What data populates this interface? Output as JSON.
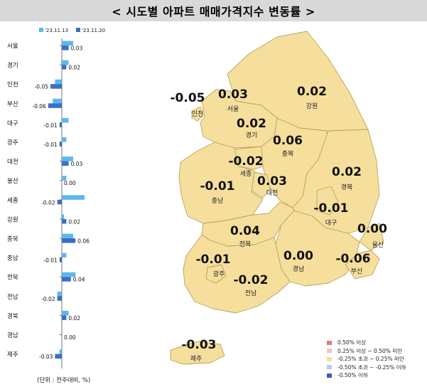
{
  "title": "< 시도별 아파트 매매가격지수 변동률 >",
  "chart_data": [
    {
      "type": "bar",
      "orientation": "horizontal",
      "categories": [
        "서울",
        "경기",
        "인천",
        "부산",
        "대구",
        "광주",
        "대전",
        "울산",
        "세종",
        "강원",
        "충북",
        "충남",
        "전북",
        "전남",
        "경북",
        "경남",
        "제주"
      ],
      "series": [
        {
          "name": "'23.11.13",
          "color": "#5bb8ec",
          "values": [
            0.05,
            0.03,
            -0.03,
            -0.04,
            0.03,
            0.02,
            0.05,
            0.02,
            0.1,
            0.01,
            0.05,
            0.02,
            0.06,
            -0.02,
            0.03,
            0.0,
            -0.01
          ]
        },
        {
          "name": "'23.11.20",
          "color": "#3a6fc7",
          "values": [
            0.03,
            0.02,
            -0.05,
            -0.06,
            -0.01,
            -0.01,
            0.03,
            0.0,
            -0.02,
            0.02,
            0.06,
            -0.01,
            0.04,
            -0.02,
            0.02,
            0.0,
            -0.03
          ]
        }
      ],
      "value_labels": [
        "0.03",
        "0.02",
        "-0.05",
        "-0.06",
        "-0.01",
        "-0.01",
        "0.03",
        "0.00",
        "-0.02",
        "0.02",
        "0.06",
        "-0.01",
        "0.04",
        "-0.02",
        "0.02",
        "0.00",
        "-0.03"
      ],
      "unit_note": "(단위 : 전주대비, %)"
    },
    {
      "type": "choropleth",
      "regions": [
        {
          "name": "인천",
          "value": "-0.05"
        },
        {
          "name": "서울",
          "value": "0.03"
        },
        {
          "name": "강원",
          "value": "0.02"
        },
        {
          "name": "경기",
          "value": "0.02"
        },
        {
          "name": "충북",
          "value": "0.06"
        },
        {
          "name": "세종",
          "value": "-0.02"
        },
        {
          "name": "대전",
          "value": "0.03"
        },
        {
          "name": "경북",
          "value": "0.02"
        },
        {
          "name": "충남",
          "value": "-0.01"
        },
        {
          "name": "대구",
          "value": "-0.01"
        },
        {
          "name": "전북",
          "value": "0.04"
        },
        {
          "name": "울산",
          "value": "0.00"
        },
        {
          "name": "광주",
          "value": "-0.01"
        },
        {
          "name": "경남",
          "value": "0.00"
        },
        {
          "name": "부산",
          "value": "-0.06"
        },
        {
          "name": "전남",
          "value": "-0.02"
        },
        {
          "name": "제주",
          "value": "-0.03"
        }
      ],
      "legend": [
        {
          "label": "0.50% 이상",
          "color": "#e07b76"
        },
        {
          "label": "0.25% 이상 ~ 0.50% 미만",
          "color": "#f2c5c2"
        },
        {
          "label": "-0.25% 초과 ~ 0.25% 미만",
          "color": "#f6df9c"
        },
        {
          "label": "-0.50% 초과 ~ -0.25% 이하",
          "color": "#b9c9e8"
        },
        {
          "label": "-0.50% 이하",
          "color": "#3a5fb0"
        }
      ],
      "fill_color": "#f6df9c",
      "border_color": "#b8a35e"
    }
  ]
}
